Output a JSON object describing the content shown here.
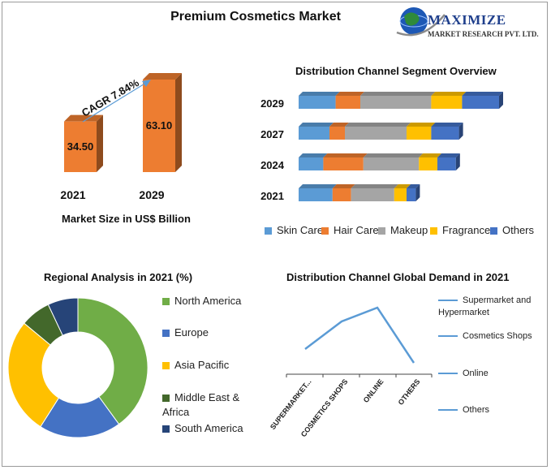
{
  "title": "Premium Cosmetics Market",
  "logo": {
    "name": "MAXIMIZE",
    "tagline": "MARKET RESEARCH PVT. LTD."
  },
  "colors": {
    "orange": "#ED7D31",
    "blue": "#5B9BD5",
    "gray": "#A5A5A5",
    "yellow": "#FFC000",
    "dark_blue": "#4472C4",
    "green": "#70AD47",
    "navy": "#264478",
    "dark_green": "#43682B"
  },
  "chart_data": [
    {
      "type": "bar",
      "categories": [
        "2021",
        "2029"
      ],
      "values": [
        34.5,
        63.1
      ],
      "value_labels": [
        "34.50",
        "63.10"
      ],
      "xlabel": "Market Size in US$ Billion",
      "annotation": "CAGR 7.84%"
    },
    {
      "type": "bar",
      "orientation": "horizontal",
      "stacked": true,
      "title": "Distribution Channel Segment Overview",
      "categories": [
        "2029",
        "2027",
        "2024",
        "2021"
      ],
      "series": [
        {
          "name": "Skin Care",
          "values": [
            12,
            10,
            8,
            11
          ]
        },
        {
          "name": "Hair Care",
          "values": [
            8,
            5,
            13,
            6
          ]
        },
        {
          "name": "Makeup",
          "values": [
            23,
            20,
            18,
            14
          ]
        },
        {
          "name": "Fragrance",
          "values": [
            10,
            8,
            6,
            4
          ]
        },
        {
          "name": "Others",
          "values": [
            12,
            9,
            6,
            3
          ]
        }
      ],
      "legend": "bottom"
    },
    {
      "type": "pie",
      "donut": true,
      "title": "Regional Analysis in 2021 (%)",
      "labels": [
        "North America",
        "Europe",
        "Asia Pacific",
        "Middle East & Africa",
        "South America"
      ],
      "values": [
        40,
        19,
        27,
        7,
        7
      ],
      "legend": "right"
    },
    {
      "type": "line",
      "title": "Distribution Channel Global Demand in 2021",
      "categories": [
        "SUPERMARKET...",
        "COSMETICS SHOPS",
        "ONLINE",
        "OTHERS"
      ],
      "values": [
        2,
        4,
        5,
        1
      ],
      "legend_entries": [
        "Supermarket and Hypermarket",
        "Cosmetics Shops",
        "Online",
        "Others"
      ],
      "legend": "right"
    }
  ]
}
